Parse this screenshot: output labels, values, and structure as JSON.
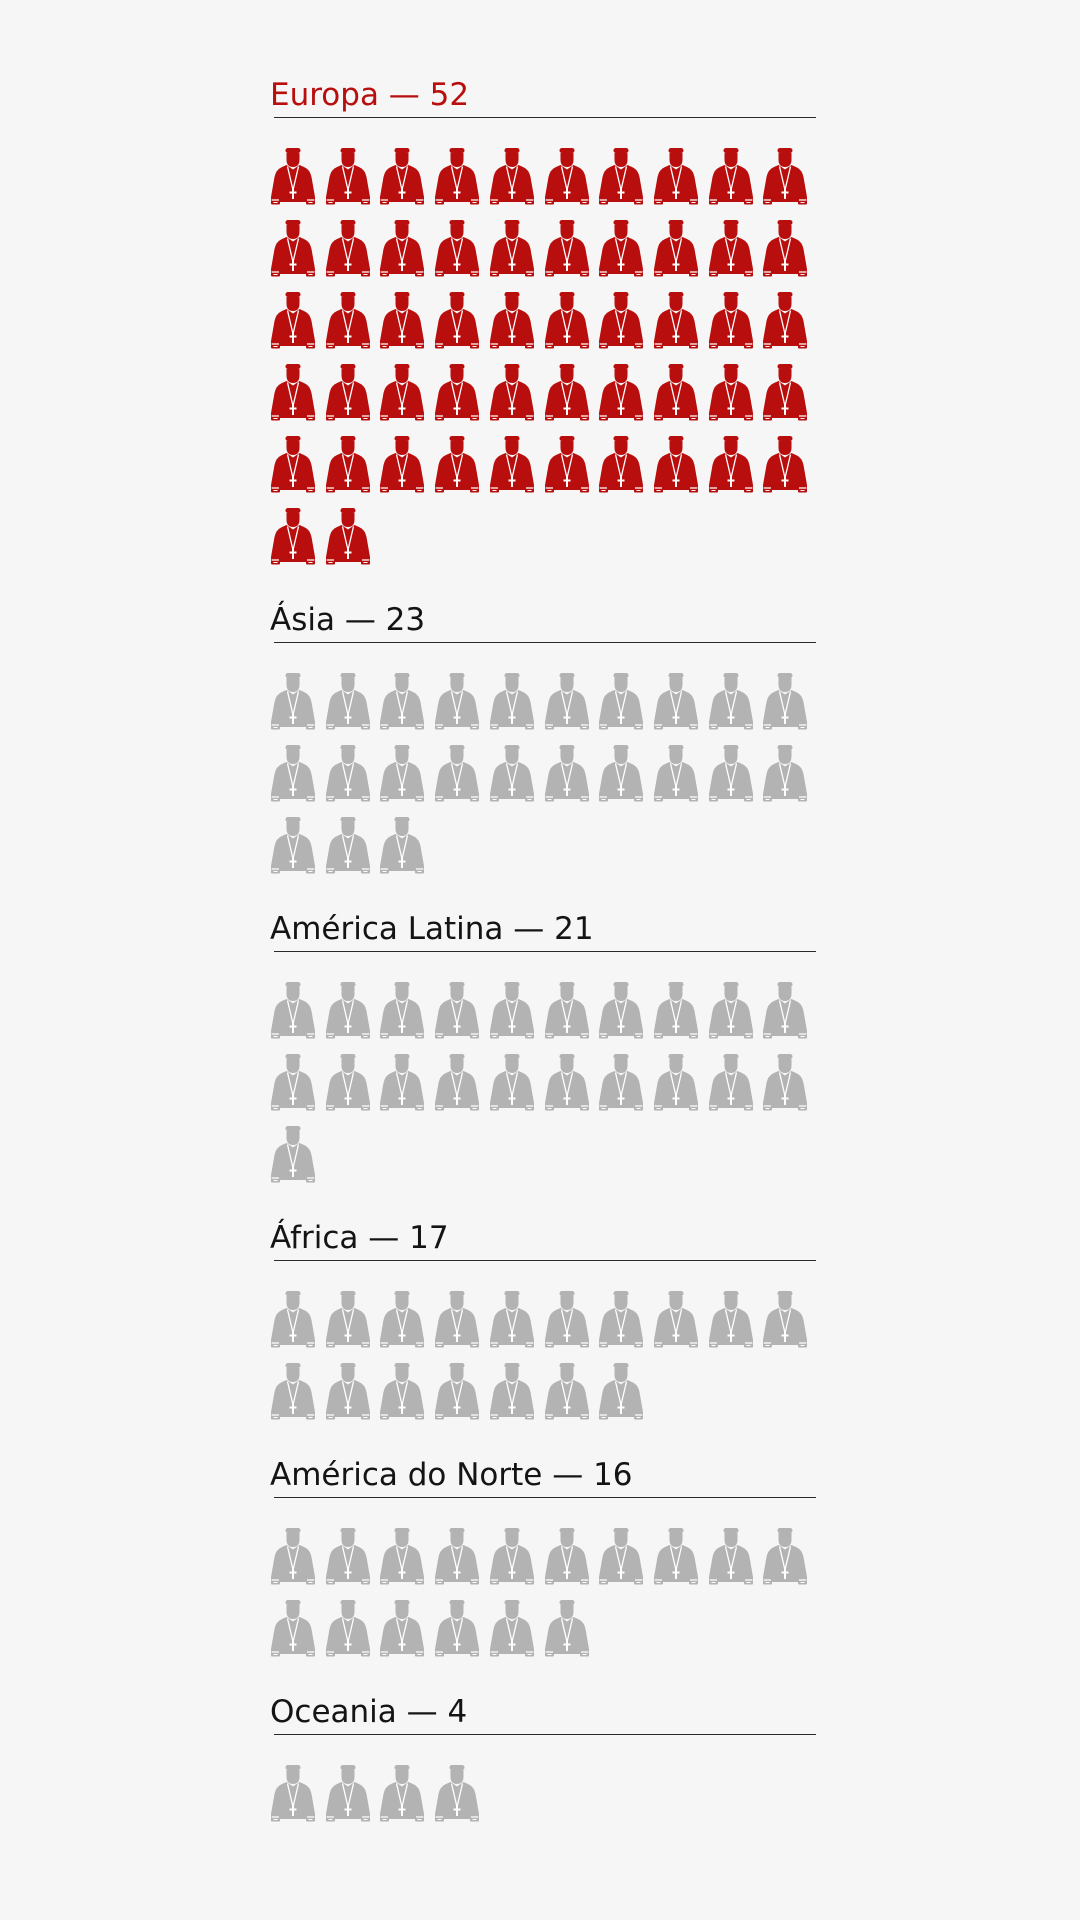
{
  "chart_data": {
    "type": "pictogram",
    "unit": "cardinal",
    "icons_per_row": 10,
    "highlight_color": "#b80f0e",
    "default_color": "#b3b3b3",
    "regions": [
      {
        "name": "Europa",
        "value": 52,
        "label": "Europa — 52",
        "highlight": true
      },
      {
        "name": "Ásia",
        "value": 23,
        "label": "Ásia — 23",
        "highlight": false
      },
      {
        "name": "América Latina",
        "value": 21,
        "label": "América Latina — 21",
        "highlight": false
      },
      {
        "name": "África",
        "value": 17,
        "label": "África — 17",
        "highlight": false
      },
      {
        "name": "América do Norte",
        "value": 16,
        "label": "América do Norte — 16",
        "highlight": false
      },
      {
        "name": "Oceania",
        "value": 4,
        "label": "Oceania — 4",
        "highlight": false
      }
    ]
  }
}
